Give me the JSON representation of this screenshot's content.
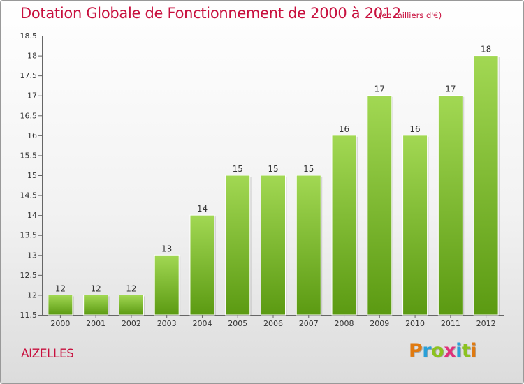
{
  "title": "Dotation Globale de Fonctionnement de 2000 à 2012",
  "unit": "(en milliers d'€)",
  "place": "AIZELLES",
  "logo": {
    "letters": [
      "P",
      "r",
      "o",
      "x",
      "i",
      "t",
      "i"
    ],
    "colors": [
      "#e07a10",
      "#2aa0d8",
      "#8cc21f",
      "#e0307a",
      "#2aa0d8",
      "#8cc21f",
      "#e07a10"
    ]
  },
  "colors": {
    "accent": "#c8103e",
    "bar_light": "#a2d853",
    "bar_dark": "#5b9a12"
  },
  "chart_data": {
    "type": "bar",
    "title": "Dotation Globale de Fonctionnement de 2000 à 2012",
    "categories": [
      "2000",
      "2001",
      "2002",
      "2003",
      "2004",
      "2005",
      "2006",
      "2007",
      "2008",
      "2009",
      "2010",
      "2011",
      "2012"
    ],
    "values": [
      12,
      12,
      12,
      13,
      14,
      15,
      15,
      15,
      16,
      17,
      16,
      17,
      18
    ],
    "data_labels": [
      "12",
      "12",
      "12",
      "13",
      "14",
      "15",
      "15",
      "15",
      "16",
      "17",
      "16",
      "17",
      "18"
    ],
    "ylim": [
      11.5,
      18.5
    ],
    "yticks": [
      "11.5",
      "12",
      "12.5",
      "13",
      "13.5",
      "14",
      "14.5",
      "15",
      "15.5",
      "16",
      "16.5",
      "17",
      "17.5",
      "18",
      "18.5"
    ],
    "grid": false,
    "legend": "none"
  }
}
